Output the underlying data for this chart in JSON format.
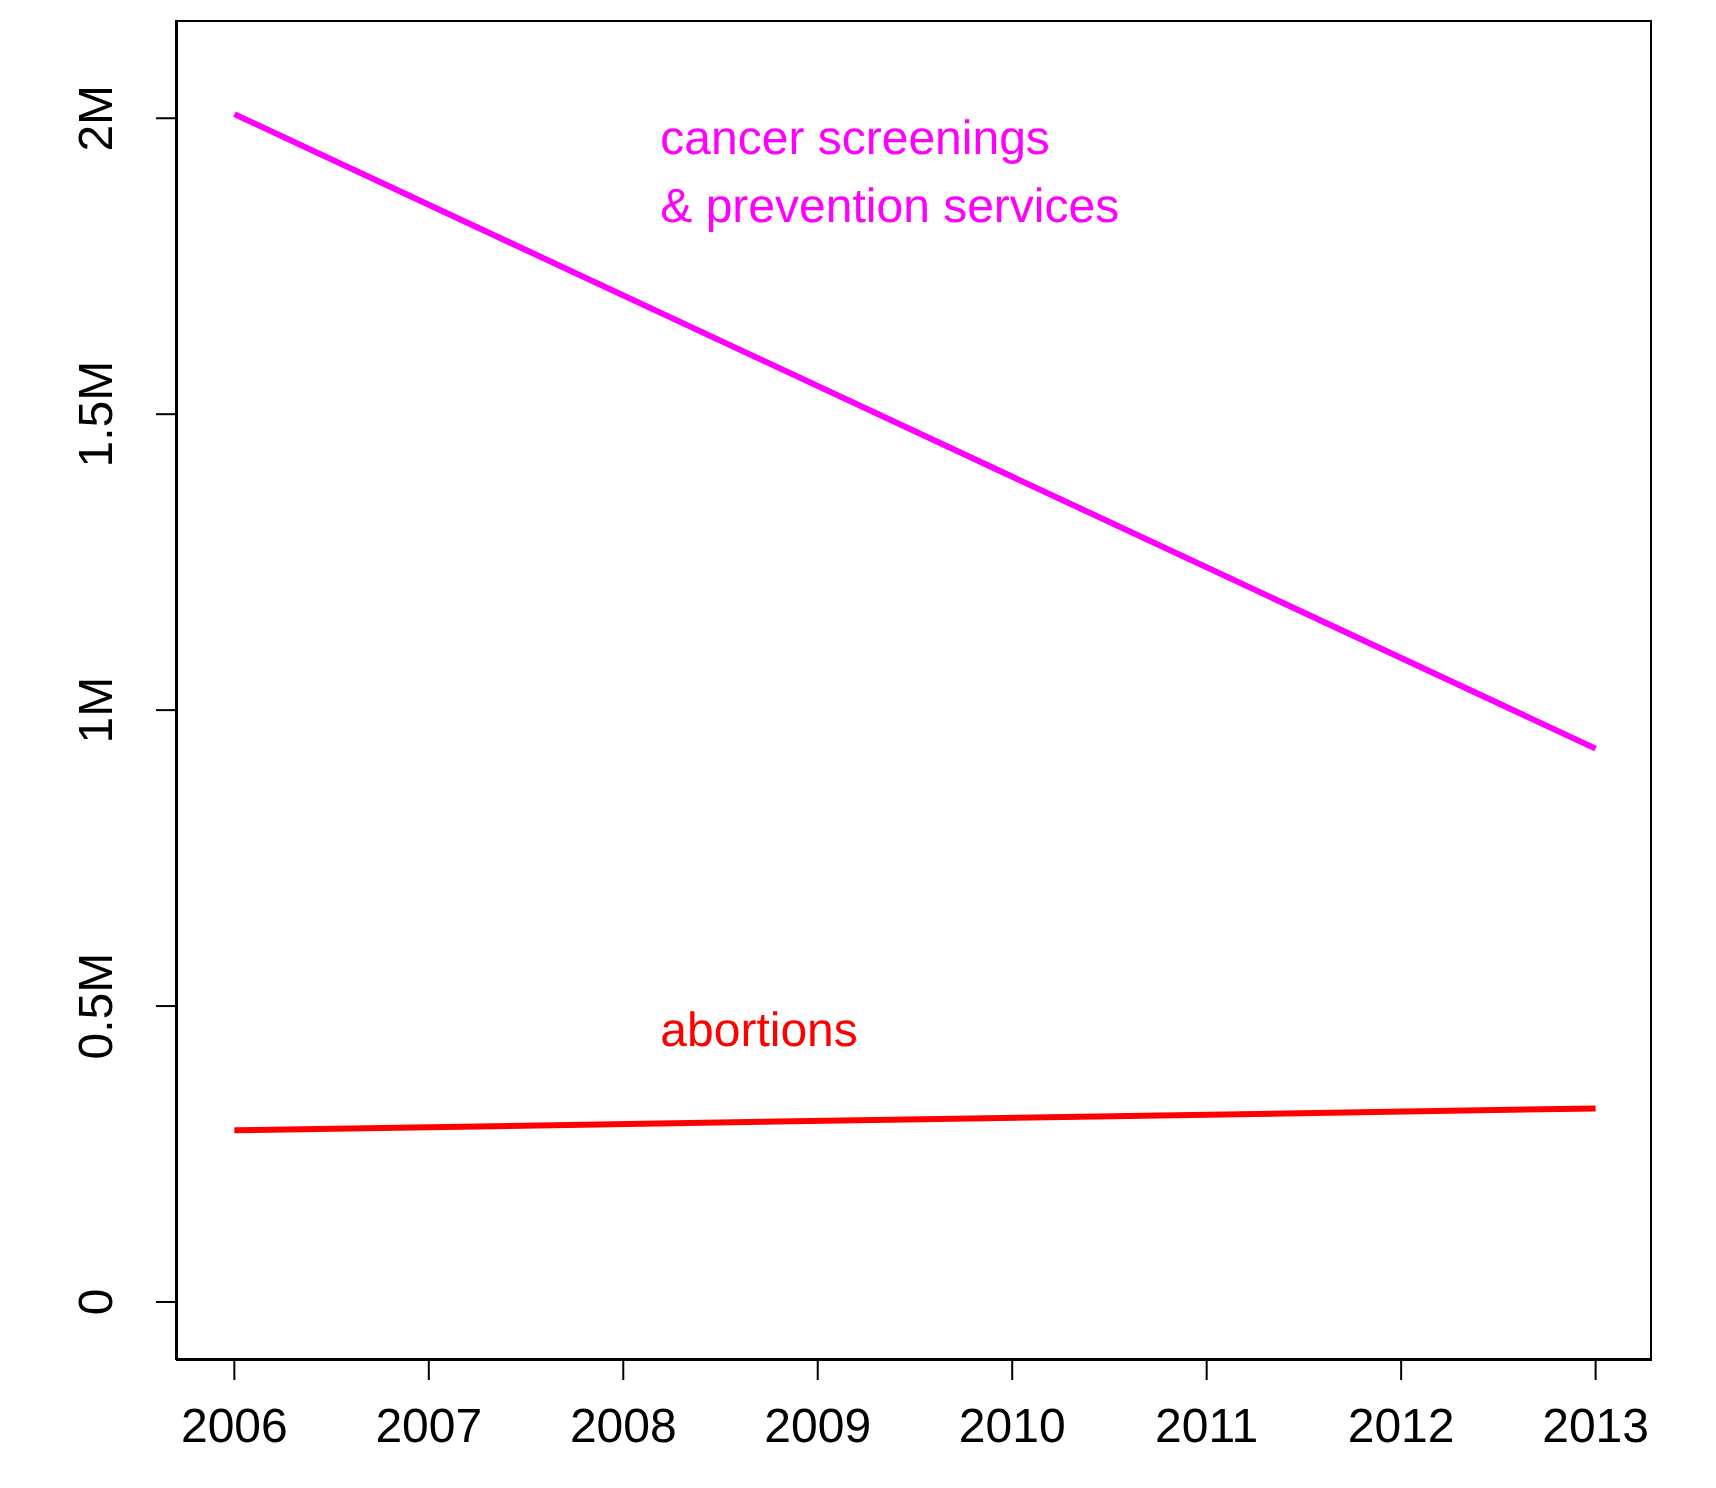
{
  "chart_data": {
    "type": "line",
    "x": [
      2006,
      2013
    ],
    "series": [
      {
        "name": "cancer screenings\n& prevention services",
        "color": "#ff00ff",
        "values": [
          2007000,
          935000
        ]
      },
      {
        "name": "abortions",
        "color": "#ff0000",
        "values": [
          290000,
          327000
        ]
      }
    ],
    "xlim": [
      2005.7,
      2013.29
    ],
    "xticks": [
      2006,
      2007,
      2008,
      2009,
      2010,
      2011,
      2012,
      2013
    ],
    "ylim": [
      -98000,
      2166000
    ],
    "yticks": [
      {
        "value": 0,
        "label": "0"
      },
      {
        "value": 500000,
        "label": "0.5M"
      },
      {
        "value": 1000000,
        "label": "1M"
      },
      {
        "value": 1500000,
        "label": "1.5M"
      },
      {
        "value": 2000000,
        "label": "2M"
      }
    ],
    "grid": false,
    "legend": false,
    "marker": "none",
    "line_style": "solid"
  }
}
